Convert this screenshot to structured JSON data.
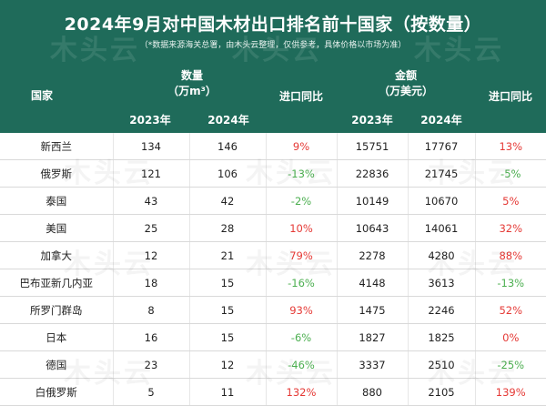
{
  "title": "2024年9月对中国木材出口排名前十国家（按数量）",
  "subtitle": "（*数据来源海关总署，由木头云整理，仅供参考，具体价格以市场为准）",
  "watermark_text": "木头云",
  "headers": {
    "country": "国家",
    "quantity": "数量",
    "quantity_unit": "（万m³）",
    "qty_change": "进口同比",
    "amount": "金额",
    "amount_unit": "（万美元）",
    "amt_change": "进口同比",
    "year_2023": "2023年",
    "year_2024": "2024年"
  },
  "colors": {
    "header_bg": "#1f6b5a",
    "positive": "#e53935",
    "negative": "#4caf50"
  },
  "rows": [
    {
      "country": "新西兰",
      "q2023": "134",
      "q2024": "146",
      "q_change": "9%",
      "q_dir": "pos",
      "a2023": "15751",
      "a2024": "17767",
      "a_change": "13%",
      "a_dir": "pos"
    },
    {
      "country": "俄罗斯",
      "q2023": "121",
      "q2024": "106",
      "q_change": "-13%",
      "q_dir": "neg",
      "a2023": "22836",
      "a2024": "21745",
      "a_change": "-5%",
      "a_dir": "neg"
    },
    {
      "country": "泰国",
      "q2023": "43",
      "q2024": "42",
      "q_change": "-2%",
      "q_dir": "neg",
      "a2023": "10149",
      "a2024": "10670",
      "a_change": "5%",
      "a_dir": "pos"
    },
    {
      "country": "美国",
      "q2023": "25",
      "q2024": "28",
      "q_change": "10%",
      "q_dir": "pos",
      "a2023": "10643",
      "a2024": "14061",
      "a_change": "32%",
      "a_dir": "pos"
    },
    {
      "country": "加拿大",
      "q2023": "12",
      "q2024": "21",
      "q_change": "79%",
      "q_dir": "pos",
      "a2023": "2278",
      "a2024": "4280",
      "a_change": "88%",
      "a_dir": "pos"
    },
    {
      "country": "巴布亚新几内亚",
      "q2023": "18",
      "q2024": "15",
      "q_change": "-16%",
      "q_dir": "neg",
      "a2023": "4148",
      "a2024": "3613",
      "a_change": "-13%",
      "a_dir": "neg"
    },
    {
      "country": "所罗门群岛",
      "q2023": "8",
      "q2024": "15",
      "q_change": "93%",
      "q_dir": "pos",
      "a2023": "1475",
      "a2024": "2246",
      "a_change": "52%",
      "a_dir": "pos"
    },
    {
      "country": "日本",
      "q2023": "16",
      "q2024": "15",
      "q_change": "-6%",
      "q_dir": "neg",
      "a2023": "1827",
      "a2024": "1825",
      "a_change": "0%",
      "a_dir": "pos"
    },
    {
      "country": "德国",
      "q2023": "23",
      "q2024": "12",
      "q_change": "-46%",
      "q_dir": "neg",
      "a2023": "3337",
      "a2024": "2510",
      "a_change": "-25%",
      "a_dir": "neg"
    },
    {
      "country": "白俄罗斯",
      "q2023": "5",
      "q2024": "11",
      "q_change": "132%",
      "q_dir": "pos",
      "a2023": "880",
      "a2024": "2105",
      "a_change": "139%",
      "a_dir": "pos"
    }
  ]
}
